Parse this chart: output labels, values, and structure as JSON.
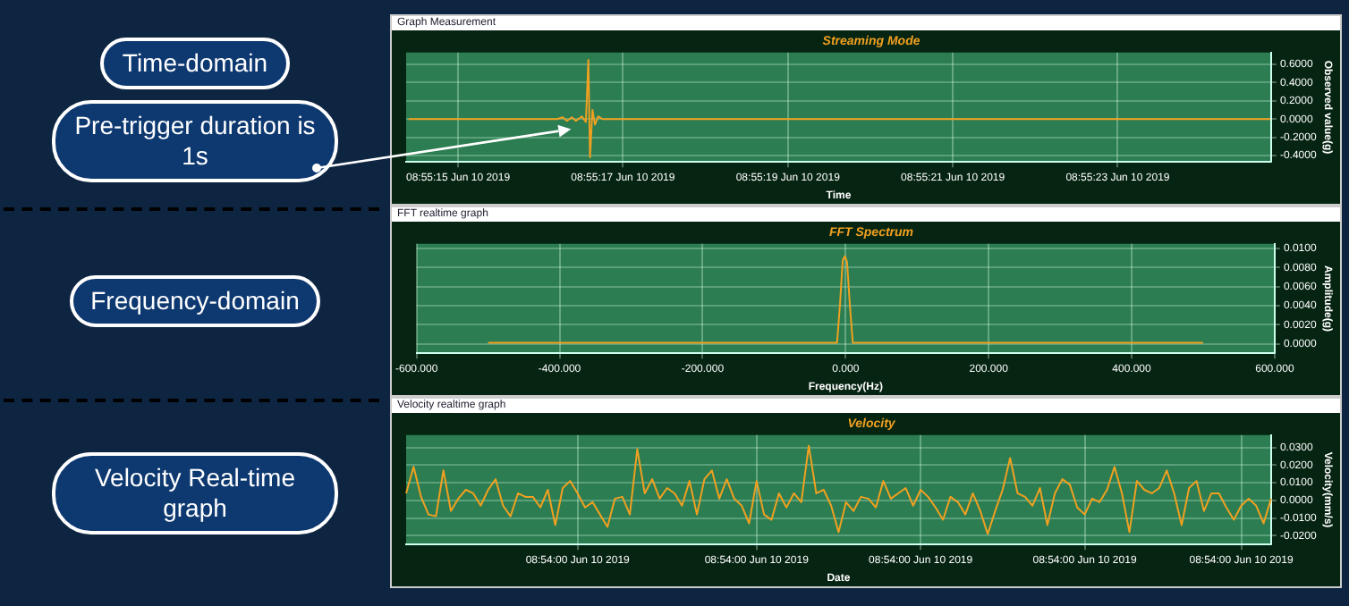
{
  "chart_data": [
    {
      "type": "line",
      "title": "Streaming Mode",
      "subtitle": "Graph Measurement",
      "xlabel": "Time",
      "ylabel": "Observed value(g)",
      "color": "#f0a020",
      "grid": true,
      "annotations": [
        "Time-domain",
        {
          "text": "Pre-trigger duration is 1s",
          "x": "2019-06-10T08:55:16.370",
          "y": -0.11
        }
      ],
      "x": [
        "2019-06-10T08:55:14.400",
        "2019-06-10T08:55:16.200",
        "2019-06-10T08:55:16.270",
        "2019-06-10T08:55:16.320",
        "2019-06-10T08:55:16.380",
        "2019-06-10T08:55:16.430",
        "2019-06-10T08:55:16.500",
        "2019-06-10T08:55:16.550",
        "2019-06-10T08:55:16.580",
        "2019-06-10T08:55:16.600",
        "2019-06-10T08:55:16.630",
        "2019-06-10T08:55:16.660",
        "2019-06-10T08:55:16.700",
        "2019-06-10T08:55:16.750",
        "2019-06-10T08:55:24.850"
      ],
      "values": [
        0,
        0,
        0.02,
        -0.02,
        0.02,
        -0.02,
        0.03,
        -0.03,
        0.65,
        -0.42,
        0.1,
        -0.06,
        0.03,
        0,
        0
      ],
      "xlim": [
        "2019-06-10T08:55:14.370",
        "2019-06-10T08:55:24.860"
      ],
      "xticks": [
        {
          "value": "2019-06-10T08:55:15",
          "label": "08:55:15 Jun 10 2019"
        },
        {
          "value": "2019-06-10T08:55:17",
          "label": "08:55:17 Jun 10 2019"
        },
        {
          "value": "2019-06-10T08:55:19",
          "label": "08:55:19 Jun 10 2019"
        },
        {
          "value": "2019-06-10T08:55:21",
          "label": "08:55:21 Jun 10 2019"
        },
        {
          "value": "2019-06-10T08:55:23",
          "label": "08:55:23 Jun 10 2019"
        }
      ],
      "ylim": [
        -0.47,
        0.73
      ],
      "yticks": [
        {
          "value": -0.4,
          "label": "-0.4000"
        },
        {
          "value": -0.2,
          "label": "-0.2000"
        },
        {
          "value": 0,
          "label": "0.0000"
        },
        {
          "value": 0.2,
          "label": "0.2000"
        },
        {
          "value": 0.4,
          "label": "0.4000"
        },
        {
          "value": 0.6,
          "label": "0.6000"
        }
      ]
    },
    {
      "type": "line",
      "title": "FFT Spectrum",
      "subtitle": "FFT realtime graph",
      "xlabel": "Frequency(Hz)",
      "ylabel": "Amplitude(g)",
      "color": "#f0a020",
      "grid": true,
      "annotations": [
        "Frequency-domain"
      ],
      "x": [
        -500,
        -300,
        -100,
        -12,
        -8,
        -4,
        -1,
        2,
        6,
        10,
        100,
        300,
        500
      ],
      "values": [
        0.0001,
        0.0001,
        0.0001,
        0.0001,
        0.004,
        0.0088,
        0.0092,
        0.0086,
        0.004,
        0.0001,
        0.0001,
        0.0001,
        0.0001
      ],
      "xlim": [
        -600,
        600
      ],
      "xticks": [
        {
          "value": -600,
          "label": "-600.000"
        },
        {
          "value": -400,
          "label": "-400.000"
        },
        {
          "value": -200,
          "label": "-200.000"
        },
        {
          "value": 0,
          "label": "0.000"
        },
        {
          "value": 200,
          "label": "200.000"
        },
        {
          "value": 400,
          "label": "400.000"
        },
        {
          "value": 600,
          "label": "600.000"
        }
      ],
      "ylim": [
        -0.001,
        0.0105
      ],
      "yticks": [
        {
          "value": 0,
          "label": "0.0000"
        },
        {
          "value": 0.002,
          "label": "0.0020"
        },
        {
          "value": 0.004,
          "label": "0.0040"
        },
        {
          "value": 0.006,
          "label": "0.0060"
        },
        {
          "value": 0.008,
          "label": "0.0080"
        },
        {
          "value": 0.01,
          "label": "0.0100"
        }
      ]
    },
    {
      "type": "line",
      "title": "Velocity",
      "subtitle": "Velocity realtime graph",
      "xlabel": "Date",
      "ylabel": "Velocity(mm/s)",
      "color": "#f0a020",
      "grid": true,
      "annotations": [
        "Velocity Real-time graph"
      ],
      "categories": [
        null,
        null,
        null,
        null,
        null,
        null,
        null,
        null,
        null,
        null,
        null,
        null,
        null,
        null,
        null,
        null,
        null,
        null,
        null,
        null,
        null,
        null,
        null,
        "08:54:00 Jun 10 2019",
        null,
        null,
        null,
        null,
        null,
        null,
        null,
        null,
        null,
        null,
        null,
        null,
        null,
        null,
        null,
        null,
        null,
        null,
        null,
        null,
        null,
        null,
        null,
        "08:54:00 Jun 10 2019",
        null,
        null,
        null,
        null,
        null,
        null,
        null,
        null,
        null,
        null,
        null,
        null,
        null,
        null,
        null,
        null,
        null,
        null,
        null,
        null,
        null,
        "08:54:00 Jun 10 2019",
        null,
        null,
        null,
        null,
        null,
        null,
        null,
        null,
        null,
        null,
        null,
        null,
        null,
        null,
        null,
        null,
        null,
        null,
        null,
        null,
        null,
        "08:54:00 Jun 10 2019",
        null,
        null,
        null,
        null,
        null,
        null,
        null,
        null,
        null,
        null,
        null,
        null,
        null,
        null,
        null,
        null,
        null,
        null,
        null,
        null,
        "08:54:00 Jun 10 2019",
        null,
        null,
        null,
        null
      ],
      "values": [
        0.004,
        0.019,
        0.002,
        -0.008,
        -0.009,
        0.017,
        -0.006,
        0.001,
        0.006,
        0.004,
        -0.003,
        0.006,
        0.012,
        -0.003,
        -0.009,
        0.004,
        0.002,
        0.002,
        -0.004,
        0.006,
        -0.014,
        0.007,
        0.011,
        0.004,
        -0.004,
        -0.001,
        -0.008,
        -0.015,
        0.001,
        0.002,
        -0.008,
        0.029,
        0.004,
        0.012,
        0.001,
        0.007,
        0.004,
        -0.003,
        0.011,
        -0.008,
        0.012,
        0.017,
        0.001,
        0.012,
        0.001,
        -0.003,
        -0.013,
        0.011,
        -0.008,
        -0.011,
        0.004,
        -0.004,
        0.004,
        -0.001,
        0.031,
        0.004,
        0.006,
        -0.003,
        -0.018,
        -0.001,
        -0.006,
        0.002,
        0.001,
        -0.004,
        0.011,
        0.001,
        0.004,
        0.007,
        -0.003,
        0.006,
        0.002,
        -0.004,
        -0.011,
        0.002,
        -0.001,
        -0.008,
        0.004,
        -0.006,
        -0.019,
        -0.006,
        0.006,
        0.024,
        0.004,
        0.002,
        -0.003,
        0.007,
        -0.014,
        0.004,
        0.012,
        0.009,
        -0.004,
        -0.008,
        0.001,
        -0.001,
        0.006,
        0.019,
        0.004,
        -0.018,
        0.011,
        0.006,
        0.004,
        0.007,
        0.017,
        0.004,
        -0.014,
        0.007,
        0.011,
        -0.006,
        0.004,
        0.004,
        -0.004,
        -0.011,
        -0.003,
        0.001,
        -0.003,
        -0.013,
        0.001
      ],
      "ylim": [
        -0.025,
        0.037
      ],
      "yticks": [
        {
          "value": -0.02,
          "label": "-0.0200"
        },
        {
          "value": -0.01,
          "label": "-0.0100"
        },
        {
          "value": 0,
          "label": "0.0000"
        },
        {
          "value": 0.01,
          "label": "0.0100"
        },
        {
          "value": 0.02,
          "label": "0.0200"
        },
        {
          "value": 0.03,
          "label": "0.0300"
        }
      ]
    }
  ]
}
